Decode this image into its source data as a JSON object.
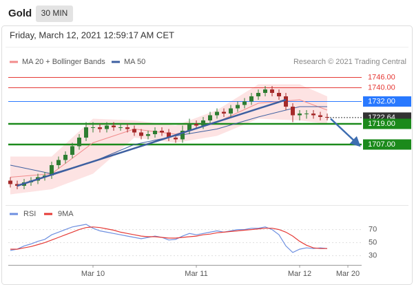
{
  "header": {
    "title": "Gold",
    "interval": "30 MIN"
  },
  "timestamp": "Friday, March 12, 2021 12:59:17 AM CET",
  "credit": "Research © 2021 Trading Central",
  "chart_data": [
    {
      "type": "candlestick",
      "up_color": "#2e7d32",
      "down_color": "#a52a2a",
      "xlim": [
        -0.3,
        51
      ],
      "ylim": [
        1675,
        1751
      ],
      "open": [
        1686,
        1684,
        1683,
        1685,
        1686,
        1688,
        1689,
        1695,
        1698,
        1701,
        1706,
        1711,
        1717,
        1717,
        1716,
        1718,
        1717,
        1717,
        1716,
        1714,
        1712,
        1713,
        1715,
        1714,
        1711,
        1710,
        1715,
        1719,
        1718,
        1721,
        1724,
        1726,
        1725,
        1728,
        1730,
        1732,
        1735,
        1737,
        1739,
        1737,
        1735,
        1729,
        1724,
        1725,
        1725,
        1724,
        1723
      ],
      "high": [
        1688,
        1686,
        1687,
        1688,
        1690,
        1691,
        1697,
        1700,
        1703,
        1708,
        1713,
        1720,
        1720,
        1719,
        1720,
        1720,
        1719,
        1719,
        1718,
        1716,
        1715,
        1717,
        1717,
        1716,
        1713,
        1718,
        1722,
        1721,
        1723,
        1726,
        1728,
        1728,
        1730,
        1732,
        1734,
        1737,
        1739,
        1741,
        1741,
        1739,
        1737,
        1731,
        1727,
        1727,
        1727,
        1726,
        1725
      ],
      "low": [
        1682,
        1681,
        1681,
        1683,
        1684,
        1686,
        1687,
        1693,
        1696,
        1699,
        1704,
        1709,
        1714,
        1714,
        1714,
        1715,
        1715,
        1714,
        1712,
        1710,
        1710,
        1711,
        1712,
        1709,
        1708,
        1708,
        1713,
        1716,
        1716,
        1719,
        1722,
        1723,
        1723,
        1726,
        1728,
        1730,
        1733,
        1735,
        1735,
        1733,
        1727,
        1720,
        1721,
        1722,
        1722,
        1721,
        1721
      ],
      "close": [
        1684,
        1683,
        1685,
        1686,
        1688,
        1689,
        1695,
        1698,
        1701,
        1706,
        1711,
        1717,
        1717,
        1716,
        1718,
        1717,
        1717,
        1716,
        1714,
        1712,
        1713,
        1715,
        1714,
        1711,
        1710,
        1715,
        1719,
        1718,
        1721,
        1724,
        1726,
        1725,
        1728,
        1730,
        1732,
        1735,
        1737,
        1739,
        1737,
        1735,
        1729,
        1724,
        1725,
        1725,
        1724,
        1723,
        1722.64
      ],
      "series": [
        {
          "name": "MA 20 + Bollinger Bands",
          "color": "#f28b8b",
          "band_color": "#fde3e3",
          "x": [
            0,
            6,
            12,
            18,
            24,
            30,
            36,
            42,
            46
          ],
          "values": [
            1688,
            1690,
            1708,
            1716,
            1713,
            1720,
            1731,
            1733,
            1727
          ],
          "upper": [
            1700,
            1700,
            1722,
            1721,
            1718,
            1727,
            1742,
            1742,
            1735
          ],
          "lower": [
            1678,
            1681,
            1690,
            1711,
            1708,
            1712,
            1722,
            1721,
            1719
          ]
        },
        {
          "name": "MA 50",
          "color": "#3d5fa0",
          "x": [
            0,
            6,
            12,
            18,
            24,
            30,
            36,
            42,
            46
          ],
          "values": [
            1695,
            1690,
            1697,
            1707,
            1712,
            1716,
            1723,
            1729,
            1729
          ]
        }
      ],
      "levels": [
        {
          "value": 1746,
          "label": "1746.00",
          "color": "#e53935",
          "box": false
        },
        {
          "value": 1740,
          "label": "1740.00",
          "color": "#e53935",
          "box": false
        },
        {
          "value": 1732,
          "label": "1732.00",
          "color": "#2979ff",
          "box": true
        },
        {
          "value": 1722.64,
          "label": "1722.64",
          "color": "#333333",
          "box": true,
          "dotted": true
        },
        {
          "value": 1719,
          "label": "1719.00",
          "color": "#1b8a1b",
          "box": true,
          "thick": true
        },
        {
          "value": 1707,
          "label": "1707.00",
          "color": "#1b8a1b",
          "box": true,
          "thick": true
        }
      ],
      "trendlines": [
        {
          "x": [
            1,
            40
          ],
          "values": [
            1683,
            1733
          ],
          "color": "#3d5fa0"
        },
        {
          "x": [
            46.5,
            50.5
          ],
          "values": [
            1722,
            1707
          ],
          "color": "#3d6db0",
          "arrow": true
        }
      ]
    },
    {
      "type": "line",
      "xlim": [
        -0.3,
        51
      ],
      "ylim": [
        16,
        100
      ],
      "yticks": [
        70,
        50,
        30
      ],
      "xticks": [
        {
          "value": 12,
          "label": "Mar 10"
        },
        {
          "value": 27,
          "label": "Mar 11"
        },
        {
          "value": 42,
          "label": "Mar 12"
        },
        {
          "value": 49,
          "label": "Mar 20"
        }
      ],
      "series": [
        {
          "name": "RSI",
          "color": "#6d8fe0",
          "values": [
            38,
            40,
            45,
            48,
            52,
            55,
            62,
            66,
            70,
            74,
            76,
            78,
            72,
            68,
            66,
            64,
            62,
            60,
            58,
            56,
            58,
            60,
            58,
            54,
            55,
            60,
            64,
            62,
            64,
            66,
            68,
            66,
            68,
            70,
            70,
            72,
            72,
            74,
            70,
            62,
            45,
            35,
            40,
            42,
            41,
            42,
            41
          ]
        },
        {
          "name": "9MA",
          "color": "#e53935",
          "values": [
            40,
            40,
            42,
            44,
            47,
            50,
            54,
            58,
            62,
            66,
            70,
            73,
            74,
            73,
            71,
            69,
            66,
            64,
            62,
            60,
            59,
            59,
            58,
            57,
            57,
            58,
            59,
            60,
            62,
            63,
            65,
            66,
            67,
            68,
            69,
            70,
            71,
            72,
            72,
            70,
            66,
            60,
            52,
            46,
            42,
            41,
            41
          ]
        }
      ]
    }
  ]
}
